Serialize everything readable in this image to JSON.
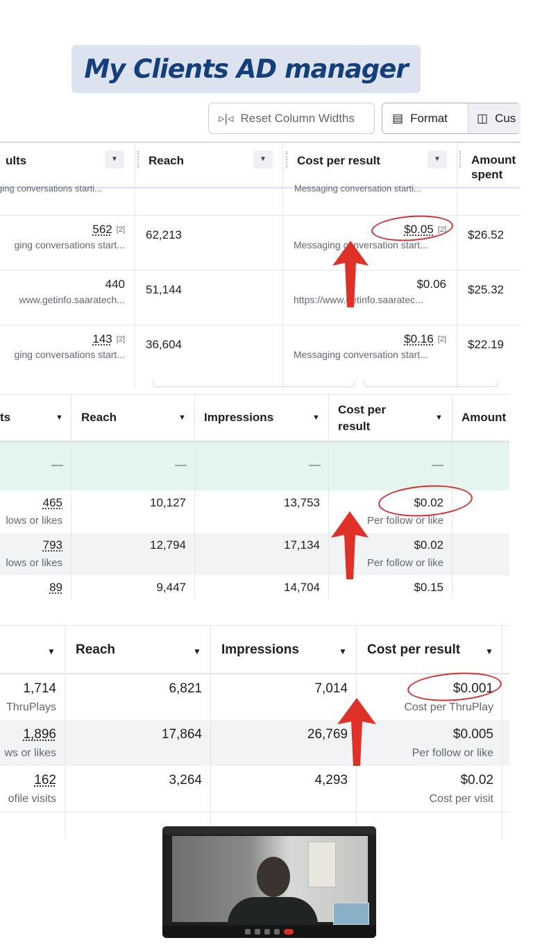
{
  "title": "My Clients AD manager",
  "panel1": {
    "toolbar": {
      "reset_label": "Reset Column Widths",
      "format_label": "Format",
      "customize_label": "Cus"
    },
    "headers": [
      "ults",
      "Reach",
      "Cost per result",
      "Amount spent"
    ],
    "cutoff_text_left": "ging conversations starti...",
    "cutoff_text_cost": "Messaging conversation starti...",
    "rows": [
      {
        "results": "562",
        "results_badge": "[2]",
        "results_sub": "ging conversations start...",
        "reach": "62,213",
        "cost": "$0.05",
        "cost_badge": "[2]",
        "cost_sub": "Messaging conversation start...",
        "amount": "$26.52"
      },
      {
        "results": "440",
        "results_badge": "",
        "results_sub": "www.getinfo.saaratech...",
        "reach": "51,144",
        "cost": "$0.06",
        "cost_badge": "",
        "cost_sub": "https://www.getinfo.saaratec...",
        "amount": "$25.32"
      },
      {
        "results": "143",
        "results_badge": "[2]",
        "results_sub": "ging conversations start...",
        "reach": "36,604",
        "cost": "$0.16",
        "cost_badge": "[2]",
        "cost_sub": "Messaging conversation start...",
        "amount": "$22.19"
      }
    ]
  },
  "panel2": {
    "headers": [
      "ts",
      "Reach",
      "Impressions",
      "Cost per result",
      "Amount"
    ],
    "summary": [
      "—",
      "—",
      "—",
      "—"
    ],
    "rows": [
      {
        "results": "465",
        "results_sub": "lows or likes",
        "reach": "10,127",
        "impressions": "13,753",
        "cost": "$0.02",
        "cost_sub": "Per follow or like"
      },
      {
        "results": "793",
        "results_sub": "lows or likes",
        "reach": "12,794",
        "impressions": "17,134",
        "cost": "$0.02",
        "cost_sub": "Per follow or like"
      },
      {
        "results": "89",
        "results_sub": "",
        "reach": "9,447",
        "impressions": "14,704",
        "cost": "$0.15",
        "cost_sub": ""
      }
    ]
  },
  "panel3": {
    "headers": [
      "Reach",
      "Impressions",
      "Cost per result"
    ],
    "rows": [
      {
        "results": "1,714",
        "results_sub": "ThruPlays",
        "reach": "6,821",
        "impressions": "7,014",
        "cost": "$0.001",
        "cost_sub": "Cost per ThruPlay"
      },
      {
        "results": "1,896",
        "results_sub": "ws or likes",
        "reach": "17,864",
        "impressions": "26,769",
        "cost": "$0.005",
        "cost_sub": "Per follow or like"
      },
      {
        "results": "162",
        "results_sub": "ofile visits",
        "reach": "3,264",
        "impressions": "4,293",
        "cost": "$0.02",
        "cost_sub": "Cost per visit"
      }
    ]
  },
  "colors": {
    "annotation": "#e03128",
    "link_blue": "#1877f2",
    "banner_bg": "#dce3ef",
    "banner_text": "#13407d"
  },
  "icons": [
    "column-resize-icon",
    "format-table-icon",
    "customize-columns-icon",
    "dropdown-caret-icon",
    "up-arrow-annotation-icon"
  ]
}
